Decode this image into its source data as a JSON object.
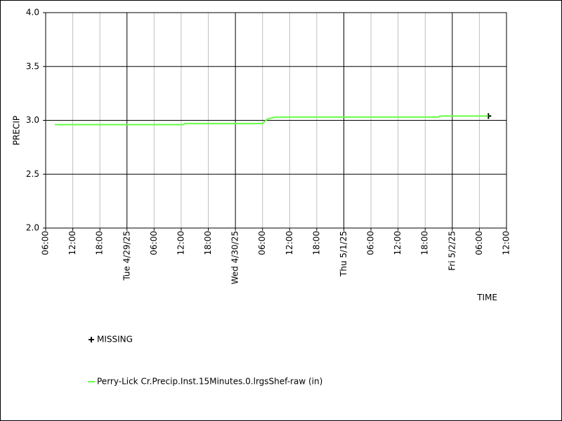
{
  "chart_data": {
    "type": "line",
    "ylabel": "PRECIP",
    "xlabel": "TIME",
    "ylim": [
      2,
      4
    ],
    "yticks": [
      {
        "value": 2,
        "label": "2.0"
      },
      2.5,
      {
        "value": 3,
        "label": "3.0"
      },
      3.5,
      {
        "value": 4,
        "label": "4.0"
      }
    ],
    "xlim": [
      "2025-04-28T06:00",
      "2025-05-02T12:00"
    ],
    "xticks": [
      {
        "value": "2025-04-28T06:00",
        "label": "06:00"
      },
      {
        "value": "2025-04-28T12:00",
        "label": "12:00"
      },
      {
        "value": "2025-04-28T18:00",
        "label": "18:00"
      },
      {
        "value": "2025-04-29T00:00",
        "label": "Tue 4/29/25"
      },
      {
        "value": "2025-04-29T06:00",
        "label": "06:00"
      },
      {
        "value": "2025-04-29T12:00",
        "label": "12:00"
      },
      {
        "value": "2025-04-29T18:00",
        "label": "18:00"
      },
      {
        "value": "2025-04-30T00:00",
        "label": "Wed 4/30/25"
      },
      {
        "value": "2025-04-30T06:00",
        "label": "06:00"
      },
      {
        "value": "2025-04-30T12:00",
        "label": "12:00"
      },
      {
        "value": "2025-04-30T18:00",
        "label": "18:00"
      },
      {
        "value": "2025-05-01T00:00",
        "label": "Thu 5/1/25"
      },
      {
        "value": "2025-05-01T06:00",
        "label": "06:00"
      },
      {
        "value": "2025-05-01T12:00",
        "label": "12:00"
      },
      {
        "value": "2025-05-01T18:00",
        "label": "18:00"
      },
      {
        "value": "2025-05-02T00:00",
        "label": "Fri 5/2/25"
      },
      {
        "value": "2025-05-02T06:00",
        "label": "06:00"
      },
      {
        "value": "2025-05-02T12:00",
        "label": "12:00"
      }
    ],
    "grid": true,
    "series": [
      {
        "name": "MISSING",
        "color": "#000000",
        "marker": "plus",
        "x": [
          "2025-05-02T08:00"
        ],
        "values": [
          3.04
        ]
      },
      {
        "name": "Perry-Lick Cr.Precip.Inst.15Minutes.0.lrgsShef-raw (in)",
        "color": "#66ff44",
        "marker": "line",
        "x": [
          "2025-04-28T08:00",
          "2025-04-29T12:30",
          "2025-04-29T12:45",
          "2025-04-30T06:00",
          "2025-04-30T07:00",
          "2025-04-30T07:45",
          "2025-04-30T09:00",
          "2025-05-01T21:00",
          "2025-05-01T21:15",
          "2025-05-02T08:00"
        ],
        "values": [
          2.96,
          2.96,
          2.97,
          2.97,
          3.01,
          3.02,
          3.03,
          3.03,
          3.04,
          3.04
        ]
      }
    ]
  }
}
